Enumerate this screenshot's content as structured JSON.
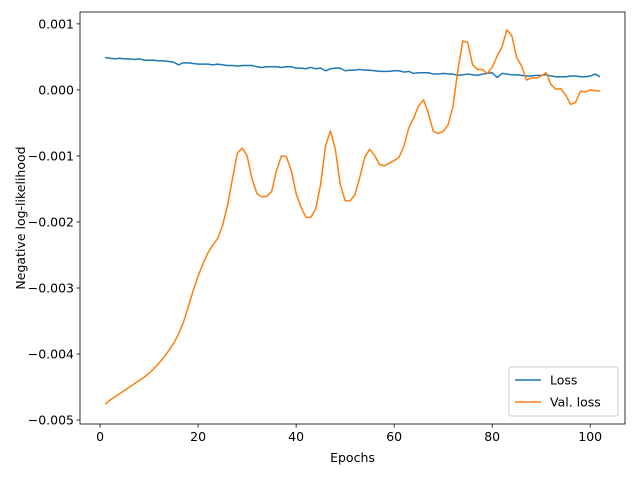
{
  "chart_data": {
    "type": "line",
    "title": "",
    "xlabel": "Epochs",
    "ylabel": "Negative log-likelihood",
    "xlim": [
      -4.1,
      107.1
    ],
    "ylim": [
      -0.00506,
      0.00118
    ],
    "xticks": [
      0,
      20,
      40,
      60,
      80,
      100
    ],
    "xtick_labels": [
      "0",
      "20",
      "40",
      "60",
      "80",
      "100"
    ],
    "yticks": [
      0.001,
      0.0,
      -0.001,
      -0.002,
      -0.003,
      -0.004,
      -0.005
    ],
    "ytick_labels": [
      "0.001",
      "0.000",
      "−0.001",
      "−0.002",
      "−0.003",
      "−0.004",
      "−0.005"
    ],
    "grid": false,
    "legend_position": "bottom-right",
    "x": [
      1,
      2,
      3,
      4,
      5,
      6,
      7,
      8,
      9,
      10,
      11,
      12,
      13,
      14,
      15,
      16,
      17,
      18,
      19,
      20,
      21,
      22,
      23,
      24,
      25,
      26,
      27,
      28,
      29,
      30,
      31,
      32,
      33,
      34,
      35,
      36,
      37,
      38,
      39,
      40,
      41,
      42,
      43,
      44,
      45,
      46,
      47,
      48,
      49,
      50,
      51,
      52,
      53,
      54,
      55,
      56,
      57,
      58,
      59,
      60,
      61,
      62,
      63,
      64,
      65,
      66,
      67,
      68,
      69,
      70,
      71,
      72,
      73,
      74,
      75,
      76,
      77,
      78,
      79,
      80,
      81,
      82,
      83,
      84,
      85,
      86,
      87,
      88,
      89,
      90,
      91,
      92,
      93,
      94,
      95,
      96,
      97,
      98,
      99,
      100,
      101,
      102
    ],
    "series": [
      {
        "name": "Loss",
        "color": "#1f77b4",
        "values": [
          0.00049,
          0.00048,
          0.00047,
          0.00048,
          0.00047,
          0.00047,
          0.00046,
          0.00047,
          0.00045,
          0.00045,
          0.00045,
          0.00044,
          0.00044,
          0.00043,
          0.00042,
          0.00038,
          0.00041,
          0.00041,
          0.0004,
          0.00039,
          0.00039,
          0.00039,
          0.00038,
          0.00039,
          0.00038,
          0.00037,
          0.00037,
          0.00036,
          0.00037,
          0.00037,
          0.00037,
          0.00035,
          0.00034,
          0.00035,
          0.00035,
          0.00035,
          0.00034,
          0.00035,
          0.00035,
          0.00033,
          0.00033,
          0.00032,
          0.00034,
          0.00032,
          0.00033,
          0.00029,
          0.00032,
          0.00033,
          0.00033,
          0.00029,
          0.0003,
          0.0003,
          0.00031,
          0.0003,
          0.0003,
          0.00029,
          0.00028,
          0.00028,
          0.00028,
          0.00029,
          0.00029,
          0.00027,
          0.00028,
          0.00025,
          0.00026,
          0.00026,
          0.00026,
          0.00024,
          0.00024,
          0.00025,
          0.00024,
          0.00024,
          0.00022,
          0.00023,
          0.00024,
          0.00023,
          0.00022,
          0.00024,
          0.00025,
          0.00026,
          0.00019,
          0.00025,
          0.00024,
          0.00023,
          0.00023,
          0.00022,
          0.00021,
          0.00021,
          0.00022,
          0.00022,
          0.00023,
          0.00021,
          0.0002,
          0.0002,
          0.0002,
          0.00021,
          0.00021,
          0.0002,
          0.0002,
          0.00021,
          0.00024,
          0.0002
        ]
      },
      {
        "name": "Val. loss",
        "color": "#ff7f0e",
        "values": [
          -0.00476,
          -0.0047,
          -0.00465,
          -0.0046,
          -0.00455,
          -0.0045,
          -0.00445,
          -0.0044,
          -0.00435,
          -0.00429,
          -0.00422,
          -0.00414,
          -0.00405,
          -0.00395,
          -0.00384,
          -0.0037,
          -0.00352,
          -0.00328,
          -0.00304,
          -0.00282,
          -0.00263,
          -0.00247,
          -0.00235,
          -0.00225,
          -0.00205,
          -0.00175,
          -0.00135,
          -0.00096,
          -0.00088,
          -0.001,
          -0.00135,
          -0.00157,
          -0.00162,
          -0.00161,
          -0.00154,
          -0.00122,
          -0.001,
          -0.00101,
          -0.00122,
          -0.00157,
          -0.00178,
          -0.00193,
          -0.00193,
          -0.0018,
          -0.00143,
          -0.00085,
          -0.00062,
          -0.0009,
          -0.00143,
          -0.00168,
          -0.00168,
          -0.00159,
          -0.00132,
          -0.00102,
          -0.0009,
          -0.00099,
          -0.00113,
          -0.00115,
          -0.00111,
          -0.00107,
          -0.00102,
          -0.00085,
          -0.00057,
          -0.00042,
          -0.00024,
          -0.00015,
          -0.00036,
          -0.00063,
          -0.00066,
          -0.00063,
          -0.00053,
          -0.00025,
          0.0003,
          0.00074,
          0.00072,
          0.00038,
          0.00031,
          0.00031,
          0.00025,
          0.00034,
          0.00051,
          0.00065,
          0.00091,
          0.00082,
          0.00049,
          0.00036,
          0.00015,
          0.00018,
          0.00018,
          0.00021,
          0.00026,
          8e-05,
          1e-05,
          2e-05,
          -8e-05,
          -0.00022,
          -0.00019,
          -2e-05,
          -3e-05,
          0,
          -1e-05,
          -2e-05
        ]
      }
    ]
  }
}
